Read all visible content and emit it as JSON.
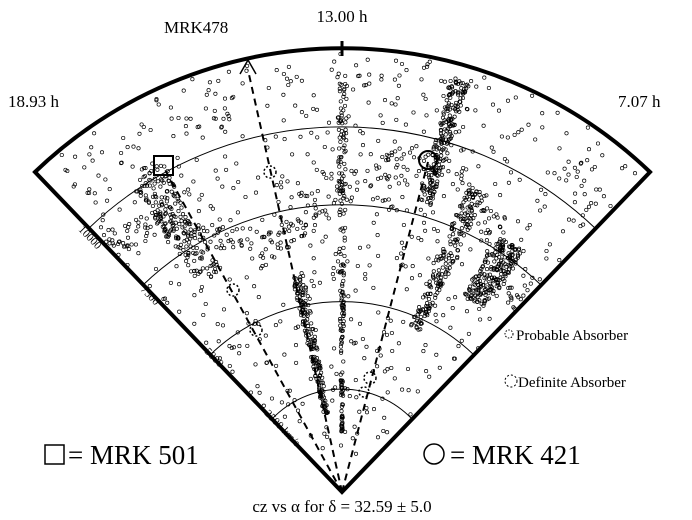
{
  "labels": {
    "mrk478": "MRK478",
    "center_ra": "13.00 h",
    "left_ra": "18.93 h",
    "right_ra": "7.07 h"
  },
  "distance_labels": [
    "10000",
    "7500",
    "5000",
    "2500 km/s"
  ],
  "legend": {
    "probable": "Probable Absorber",
    "definite": "Definite Absorber",
    "mrk501": "= MRK 501",
    "mrk421": "= MRK 421"
  },
  "caption": "cz vs α for δ = 32.59 ± 5.0"
}
